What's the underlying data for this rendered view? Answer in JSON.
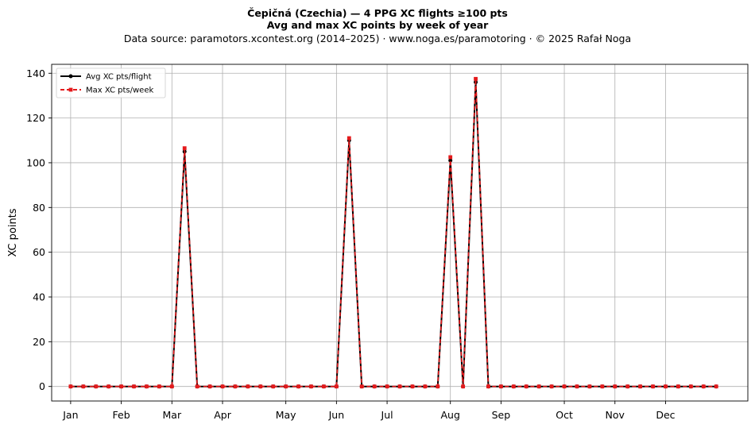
{
  "chart_data": {
    "type": "line",
    "title": "Čepičná (Czechia)  —  4 PPG XC flights ≥100 pts",
    "subtitle": "Avg and max XC points by week of year",
    "source_note": "Data source: paramotors.xcontest.org (2014–2025)  ·  www.noga.es/paramotoring  ·  © 2025 Rafał Noga",
    "xlabel": "",
    "ylabel": "XC points",
    "xlim": [
      -1.5,
      53.5
    ],
    "ylim": [
      -6.5,
      144
    ],
    "grid": true,
    "legend_position": "upper-left",
    "month_ticks": [
      {
        "label": "Jan",
        "week": 0
      },
      {
        "label": "Feb",
        "week": 4
      },
      {
        "label": "Mar",
        "week": 8
      },
      {
        "label": "Apr",
        "week": 12
      },
      {
        "label": "May",
        "week": 17
      },
      {
        "label": "Jun",
        "week": 21
      },
      {
        "label": "Jul",
        "week": 25
      },
      {
        "label": "Aug",
        "week": 30
      },
      {
        "label": "Sep",
        "week": 34
      },
      {
        "label": "Oct",
        "week": 39
      },
      {
        "label": "Nov",
        "week": 43
      },
      {
        "label": "Dec",
        "week": 47
      }
    ],
    "y_ticks": [
      0,
      20,
      40,
      60,
      80,
      100,
      120,
      140
    ],
    "x": [
      0,
      1,
      2,
      3,
      4,
      5,
      6,
      7,
      8,
      9,
      10,
      11,
      12,
      13,
      14,
      15,
      16,
      17,
      18,
      19,
      20,
      21,
      22,
      23,
      24,
      25,
      26,
      27,
      28,
      29,
      30,
      31,
      32,
      33,
      34,
      35,
      36,
      37,
      38,
      39,
      40,
      41,
      42,
      43,
      44,
      45,
      46,
      47,
      48,
      49,
      50,
      51
    ],
    "series": [
      {
        "name": "Avg XC pts/flight",
        "color": "#000000",
        "style": "solid",
        "marker": "circle",
        "values": [
          0,
          0,
          0,
          0,
          0,
          0,
          0,
          0,
          0,
          105,
          0,
          0,
          0,
          0,
          0,
          0,
          0,
          0,
          0,
          0,
          0,
          0,
          110,
          0,
          0,
          0,
          0,
          0,
          0,
          0,
          101,
          0,
          136,
          0,
          0,
          0,
          0,
          0,
          0,
          0,
          0,
          0,
          0,
          0,
          0,
          0,
          0,
          0,
          0,
          0,
          0,
          0
        ]
      },
      {
        "name": "Max XC pts/week",
        "color": "#e41a1c",
        "style": "dashed",
        "marker": "square",
        "values": [
          0,
          0,
          0,
          0,
          0,
          0,
          0,
          0,
          0,
          106.5,
          0,
          0,
          0,
          0,
          0,
          0,
          0,
          0,
          0,
          0,
          0,
          0,
          111,
          0,
          0,
          0,
          0,
          0,
          0,
          0,
          102.5,
          0,
          137.5,
          0,
          0,
          0,
          0,
          0,
          0,
          0,
          0,
          0,
          0,
          0,
          0,
          0,
          0,
          0,
          0,
          0,
          0,
          0
        ]
      }
    ]
  }
}
